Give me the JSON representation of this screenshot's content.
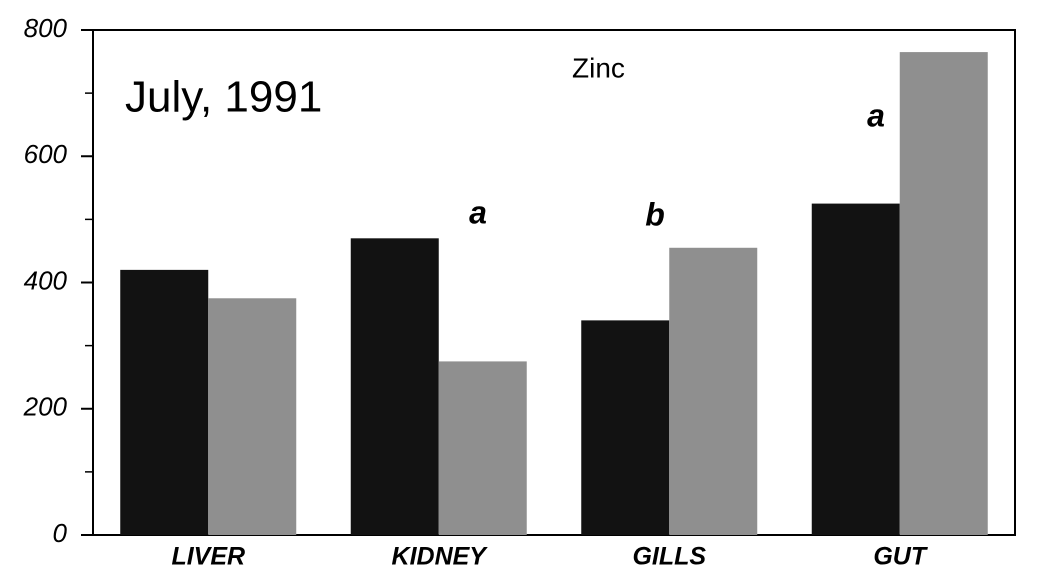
{
  "chart_data": {
    "type": "bar",
    "annotations": [
      "July, 1991",
      "Zinc",
      "a",
      "b",
      "a"
    ],
    "categories": [
      "LIVER",
      "KIDNEY",
      "GILLS",
      "GUT"
    ],
    "series": [
      {
        "color": "#121212",
        "values": [
          420,
          470,
          340,
          525
        ]
      },
      {
        "color": "#8f8f8f",
        "values": [
          375,
          275,
          455,
          765
        ]
      }
    ],
    "ylim": [
      0,
      800
    ],
    "yticks": [
      0,
      200,
      400,
      600,
      800
    ],
    "yticks_minor": [
      100,
      300,
      500,
      700
    ]
  }
}
